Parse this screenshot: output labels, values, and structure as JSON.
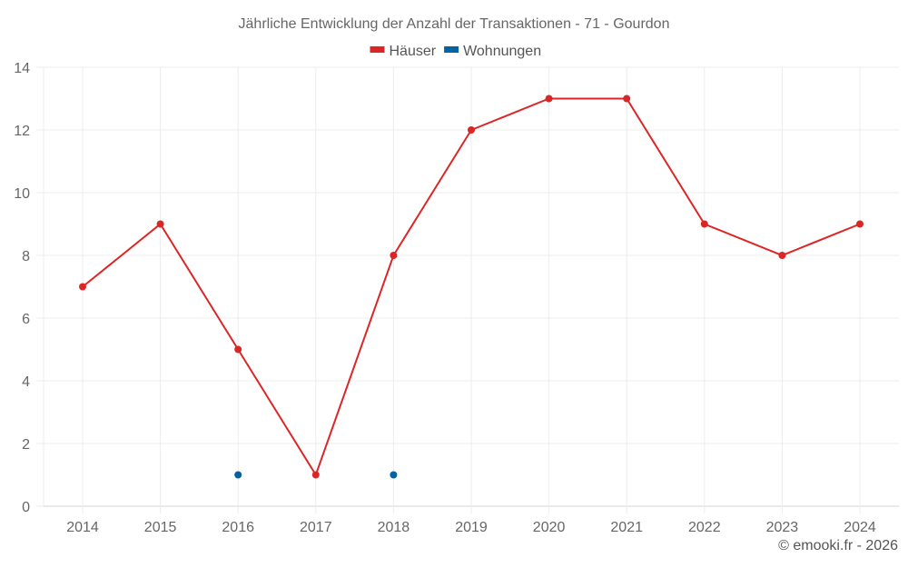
{
  "chart_data": {
    "type": "line",
    "title": "Jährliche Entwicklung der Anzahl der Transaktionen - 71 - Gourdon",
    "xlabel": "",
    "ylabel": "",
    "categories": [
      "2014",
      "2015",
      "2016",
      "2017",
      "2018",
      "2019",
      "2020",
      "2021",
      "2022",
      "2023",
      "2024"
    ],
    "series": [
      {
        "name": "Häuser",
        "color": "#dc2626",
        "values": [
          7,
          9,
          5,
          1,
          8,
          12,
          13,
          13,
          9,
          8,
          9
        ]
      },
      {
        "name": "Wohnungen",
        "color": "#0063a3",
        "values": [
          null,
          null,
          1,
          null,
          1,
          null,
          null,
          null,
          null,
          null,
          null
        ]
      }
    ],
    "ylim": [
      0,
      14
    ],
    "yticks": [
      0,
      2,
      4,
      6,
      8,
      10,
      12,
      14
    ],
    "grid": true,
    "legend_position": "top"
  },
  "credit": "© emooki.fr - 2026"
}
